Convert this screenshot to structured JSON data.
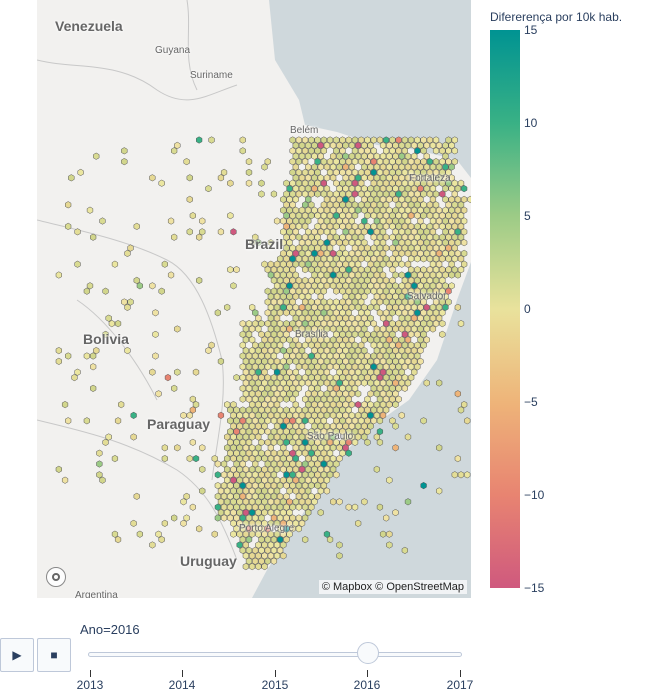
{
  "map": {
    "labels": {
      "venezuela": "Venezuela",
      "guyana": "Guyana",
      "suriname": "Suriname",
      "belem": "Belém",
      "fortaleza": "Fortaleza",
      "brazil": "Brazil",
      "salvador": "Salvador",
      "bolivia": "Bolivia",
      "brasilia": "Brasília",
      "paraguay": "Paraguay",
      "sao_paulo": "São Paulo",
      "porto_alegre": "Porto Alegre",
      "uruguay": "Uruguay",
      "argentina": "Argentina"
    },
    "attribution": "© Mapbox © OpenStreetMap",
    "colors": {
      "land": "#f2f1ef",
      "water": "#cfd8dc",
      "hex_stroke": "#555555"
    }
  },
  "colorbar": {
    "title": "Difererença por 10k hab.",
    "min": -15,
    "max": 15,
    "ticks": [
      "15",
      "10",
      "5",
      "0",
      "−5",
      "−10",
      "−15"
    ],
    "colors": [
      "#009392",
      "#39b185",
      "#9ccb86",
      "#e9e29c",
      "#eeb479",
      "#e88471",
      "#cf597e"
    ]
  },
  "controls": {
    "play_icon": "▶",
    "stop_icon": "■",
    "current_label": "Ano=2016",
    "steps": [
      "2013",
      "2014",
      "2015",
      "2016",
      "2017"
    ],
    "current_index": 3
  }
}
